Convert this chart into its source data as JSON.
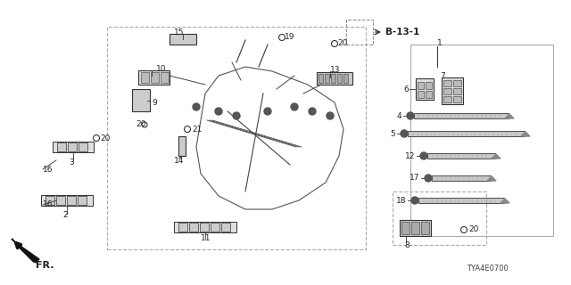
{
  "bg_color": "#ffffff",
  "line_color": "#333333",
  "border_color": "#888888",
  "title_code": "TYA4E0700",
  "ref_label": "B-13-1",
  "fr_label": "FR.",
  "part_numbers": [
    1,
    2,
    3,
    4,
    5,
    6,
    7,
    8,
    9,
    10,
    11,
    12,
    13,
    14,
    15,
    16,
    17,
    18,
    19,
    20,
    21
  ],
  "fig_width": 6.4,
  "fig_height": 3.2,
  "dpi": 100
}
